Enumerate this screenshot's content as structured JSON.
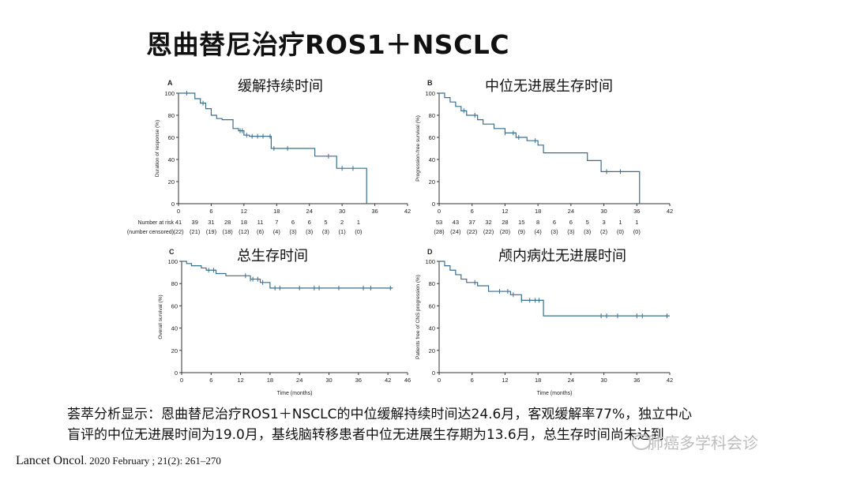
{
  "title": "恩曲替尼治疗ROS1＋NSCLC",
  "summary_lines": [
    "荟萃分析显示：恩曲替尼治疗ROS1＋NSCLC的中位缓解持续时间达24.6月，客观缓解率77%，独立中心",
    "盲评的中位无进展时间为19.0月，基线脑转移患者中位无进展生存期为13.6月，总生存时间尚未达到"
  ],
  "citation": {
    "journal": "Lancet Oncol",
    "rest": ". 2020 February ; 21(2): 261–270"
  },
  "watermark": "肺癌多学科会诊",
  "colors": {
    "curve": "#3a6e8f",
    "axis": "#333333",
    "text": "#222222"
  },
  "chart_data": [
    {
      "type": "line",
      "panel_letter": "A",
      "caption": "缓解持续时间",
      "ylabel": "Duration of response (%)",
      "xlabel": "",
      "xlim": [
        0,
        42
      ],
      "ylim": [
        0,
        100
      ],
      "x_ticks": [
        0,
        6,
        12,
        18,
        24,
        30,
        36,
        42
      ],
      "y_ticks": [
        0,
        20,
        40,
        60,
        80,
        100
      ],
      "step_x": [
        0,
        3,
        4,
        5,
        6,
        7,
        8,
        10,
        11,
        12,
        13,
        17,
        25,
        29,
        34.5
      ],
      "step_y": [
        100,
        95,
        91,
        86,
        80,
        77,
        76,
        68,
        66,
        62,
        61,
        50,
        43,
        32,
        0
      ],
      "censor_x": [
        1.5,
        4.5,
        11.3,
        11.7,
        12.5,
        13.5,
        14.5,
        15.5,
        16.8,
        17.5,
        20,
        27.5,
        30,
        32
      ],
      "risk_label": "Number at risk",
      "censored_label": "(number censored)",
      "risk": [
        "41",
        "39",
        "31",
        "28",
        "18",
        "11",
        "7",
        "6",
        "6",
        "5",
        "2",
        "1"
      ],
      "censored": [
        "(22)",
        "(21)",
        "(19)",
        "(18)",
        "(12)",
        "(6)",
        "(4)",
        "(3)",
        "(3)",
        "(3)",
        "(1)",
        "(0)"
      ]
    },
    {
      "type": "line",
      "panel_letter": "B",
      "caption": "中位无进展生存时间",
      "ylabel": "Progression-free survival (%)",
      "xlabel": "",
      "xlim": [
        0,
        42
      ],
      "ylim": [
        0,
        100
      ],
      "x_ticks": [
        0,
        6,
        12,
        18,
        24,
        30,
        36,
        42
      ],
      "y_ticks": [
        0,
        20,
        40,
        60,
        80,
        100
      ],
      "step_x": [
        0,
        1,
        2,
        3,
        4,
        5,
        7,
        8,
        10,
        12,
        14,
        16,
        18,
        19,
        27,
        29.5,
        36.5
      ],
      "step_y": [
        100,
        96,
        92,
        88,
        84,
        80,
        76,
        72,
        68,
        64,
        60,
        57,
        53,
        46,
        39,
        29,
        0
      ],
      "censor_x": [
        4.5,
        6.5,
        12,
        13.5,
        14.5,
        17.5,
        30.5,
        33
      ],
      "risk_label": "",
      "censored_label": "",
      "risk": [
        "53",
        "43",
        "37",
        "32",
        "28",
        "15",
        "8",
        "6",
        "6",
        "5",
        "3",
        "1",
        "1"
      ],
      "censored": [
        "(28)",
        "(24)",
        "(22)",
        "(22)",
        "(20)",
        "(9)",
        "(4)",
        "(3)",
        "(3)",
        "(3)",
        "(2)",
        "(0)",
        "(0)"
      ]
    },
    {
      "type": "line",
      "panel_letter": "C",
      "caption": "总生存时间",
      "ylabel": "Overall survival (%)",
      "xlabel": "Time (months)",
      "xlim": [
        0,
        46
      ],
      "ylim": [
        0,
        100
      ],
      "x_ticks": [
        0,
        6,
        12,
        18,
        24,
        30,
        36,
        42,
        46
      ],
      "y_ticks": [
        0,
        20,
        40,
        60,
        80,
        100
      ],
      "step_x": [
        0,
        1,
        2,
        4,
        5,
        7,
        9,
        14,
        16,
        18,
        43
      ],
      "step_y": [
        100,
        98,
        96,
        94,
        92,
        89,
        87,
        84,
        81,
        76,
        76
      ],
      "censor_x": [
        5.5,
        6.5,
        13,
        14,
        14.5,
        15.5,
        16.5,
        19,
        20,
        24,
        27,
        28,
        32,
        37,
        38.5,
        42.5
      ],
      "risk_label": "",
      "censored_label": "",
      "risk": [],
      "censored": []
    },
    {
      "type": "line",
      "panel_letter": "D",
      "caption": "颅内病灶无进展时间",
      "ylabel": "Patients free of CNS progression (%)",
      "xlabel": "Time (months)",
      "xlim": [
        0,
        42
      ],
      "ylim": [
        0,
        100
      ],
      "x_ticks": [
        0,
        6,
        12,
        18,
        24,
        30,
        36,
        42
      ],
      "y_ticks": [
        0,
        20,
        40,
        60,
        80,
        100
      ],
      "step_x": [
        0,
        1,
        2,
        3,
        4,
        5,
        7,
        9,
        13,
        15,
        19,
        42
      ],
      "step_y": [
        100,
        96,
        92,
        88,
        84,
        81,
        78,
        73,
        70,
        65,
        51,
        51
      ],
      "censor_x": [
        6.5,
        11,
        12.5,
        13.5,
        15,
        16.5,
        17.5,
        18.2,
        29.5,
        30.5,
        32.5,
        36,
        37,
        41.5
      ],
      "risk_label": "",
      "censored_label": "",
      "risk": [],
      "censored": []
    }
  ]
}
